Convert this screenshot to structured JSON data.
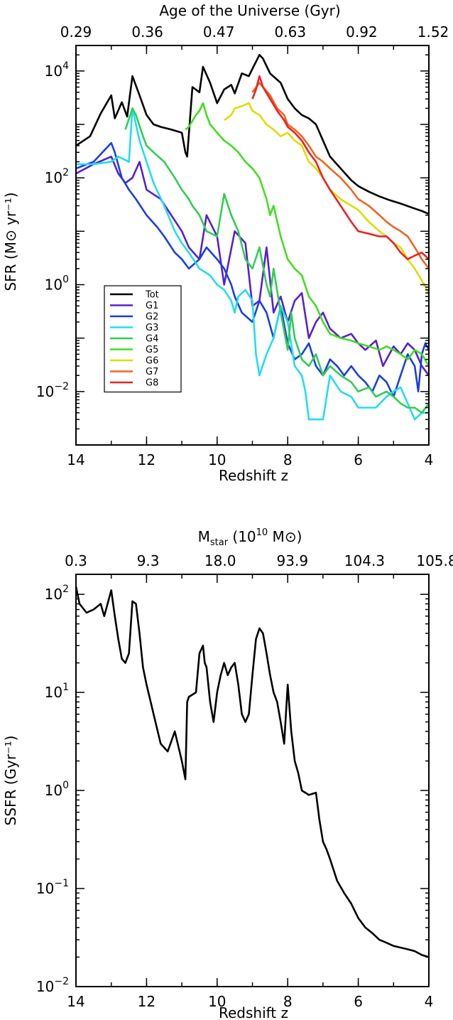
{
  "chart_data": [
    {
      "type": "line",
      "xlabel": "Redshift z",
      "ylabel": "SFR (M⊙ yr⁻¹)",
      "top_axis_label": "Age of the Universe (Gyr)",
      "top_tick_labels": [
        "0.29",
        "0.36",
        "0.47",
        "0.63",
        "0.92",
        "1.52"
      ],
      "x_ticks": [
        14,
        12,
        10,
        8,
        6,
        4
      ],
      "xlim": [
        14,
        4
      ],
      "ylim": [
        0.001,
        30000
      ],
      "yscale": "log",
      "y_tick_labels": [
        {
          "value": 10000,
          "base": "10",
          "exp": "4"
        },
        {
          "value": 100,
          "base": "10",
          "exp": "2"
        },
        {
          "value": 1,
          "base": "10",
          "exp": "0"
        },
        {
          "value": 0.01,
          "base": "10",
          "exp": "−2"
        }
      ],
      "legend_position": "lower-left",
      "series": [
        {
          "name": "Tot",
          "color": "#000000",
          "x": [
            14.0,
            13.6,
            13.3,
            13.0,
            12.9,
            12.7,
            12.55,
            12.4,
            12.2,
            12.0,
            11.8,
            11.6,
            11.3,
            11.0,
            10.9,
            10.85,
            10.7,
            10.5,
            10.4,
            10.2,
            10.0,
            9.8,
            9.6,
            9.5,
            9.3,
            9.1,
            9.0,
            8.8,
            8.7,
            8.5,
            8.2,
            8.0,
            7.8,
            7.6,
            7.4,
            7.2,
            7.0,
            6.8,
            6.5,
            6.2,
            6.0,
            5.7,
            5.4,
            5.1,
            4.8,
            4.5,
            4.2,
            4.0
          ],
          "y": [
            400,
            600,
            1600,
            3500,
            1300,
            2600,
            1400,
            8000,
            3500,
            1500,
            1000,
            900,
            800,
            700,
            300,
            250,
            5000,
            4000,
            12000,
            6000,
            2500,
            4500,
            5500,
            3800,
            9000,
            8000,
            11000,
            20000,
            17000,
            9000,
            6000,
            3000,
            2000,
            1500,
            1300,
            1000,
            500,
            250,
            150,
            90,
            70,
            55,
            45,
            38,
            33,
            28,
            24,
            21
          ]
        },
        {
          "name": "G1",
          "color": "#5522cc",
          "x": [
            14.0,
            13.5,
            13.0,
            12.8,
            12.6,
            12.4,
            12.2,
            12.0,
            11.6,
            11.3,
            11.0,
            10.8,
            10.5,
            10.3,
            10.0,
            9.8,
            9.5,
            9.2,
            9.0,
            8.8,
            8.6,
            8.4,
            8.2,
            8.0,
            7.8,
            7.6,
            7.4,
            7.2,
            7.0,
            6.8,
            6.5,
            6.2,
            6.0,
            5.8,
            5.5,
            5.3,
            5.0,
            4.8,
            4.6,
            4.4,
            4.2,
            4.0
          ],
          "y": [
            120,
            180,
            250,
            120,
            80,
            100,
            200,
            60,
            40,
            20,
            10,
            5,
            3,
            20,
            8,
            1,
            10,
            6,
            0.4,
            0.5,
            5,
            0.3,
            0.6,
            0.2,
            0.5,
            0.7,
            0.1,
            0.2,
            0.3,
            0.15,
            0.1,
            0.12,
            0.08,
            0.06,
            0.09,
            0.03,
            0.07,
            0.05,
            0.08,
            0.06,
            0.03,
            0.02
          ]
        },
        {
          "name": "G2",
          "color": "#1a3fe0",
          "x": [
            14.0,
            13.5,
            13.0,
            12.9,
            12.7,
            12.5,
            12.3,
            12.0,
            11.7,
            11.5,
            11.2,
            11.0,
            10.8,
            10.5,
            10.3,
            10.0,
            9.8,
            9.6,
            9.5,
            9.3,
            9.0,
            8.8,
            8.6,
            8.4,
            8.2,
            8.0,
            7.8,
            7.6,
            7.4,
            7.2,
            7.0,
            6.8,
            6.6,
            6.4,
            6.2,
            6.0,
            5.8,
            5.6,
            5.4,
            5.2,
            5.0,
            4.8,
            4.6,
            4.4,
            4.3,
            4.2,
            4.1,
            4.0
          ],
          "y": [
            150,
            200,
            450,
            300,
            100,
            60,
            40,
            20,
            12,
            8,
            4,
            3,
            2,
            3,
            5,
            3,
            2,
            1,
            0.6,
            0.3,
            0.2,
            0.5,
            0.3,
            0.1,
            0.4,
            0.08,
            0.04,
            0.05,
            0.08,
            0.03,
            0.02,
            0.04,
            0.03,
            0.02,
            0.03,
            0.02,
            0.015,
            0.01,
            0.02,
            0.015,
            0.008,
            0.02,
            0.05,
            0.03,
            0.01,
            0.05,
            0.08,
            0.06
          ]
        },
        {
          "name": "G3",
          "color": "#22ddee",
          "x": [
            14.0,
            13.5,
            13.0,
            12.8,
            12.5,
            12.4,
            12.2,
            12.0,
            11.8,
            11.5,
            11.2,
            11.0,
            10.8,
            10.5,
            10.2,
            10.0,
            9.8,
            9.6,
            9.5,
            9.4,
            9.2,
            9.0,
            8.9,
            8.8,
            8.6,
            8.4,
            8.2,
            8.0,
            7.8,
            7.6,
            7.5,
            7.4,
            7.3,
            7.0,
            6.8,
            6.5,
            6.2,
            6.0,
            5.7,
            5.5,
            5.2,
            5.0,
            4.8,
            4.6,
            4.4,
            4.2,
            4.0
          ],
          "y": [
            180,
            180,
            200,
            250,
            200,
            2000,
            500,
            200,
            80,
            30,
            10,
            6,
            4,
            2,
            1.5,
            1.0,
            0.8,
            0.5,
            0.3,
            0.6,
            0.8,
            0.5,
            0.05,
            0.02,
            0.05,
            0.1,
            0.4,
            0.2,
            0.03,
            0.02,
            0.01,
            0.003,
            0.003,
            0.003,
            0.02,
            0.01,
            0.008,
            0.005,
            0.005,
            0.005,
            0.008,
            0.01,
            0.012,
            0.006,
            0.003,
            0.004,
            0.004
          ]
        },
        {
          "name": "G4",
          "color": "#33cc55",
          "x": [
            12.6,
            12.4,
            12.3,
            12.1,
            12.0,
            11.8,
            11.5,
            11.2,
            11.0,
            10.8,
            10.7,
            10.5,
            10.3,
            10.0,
            9.8,
            9.6,
            9.4,
            9.2,
            9.0,
            8.8,
            8.6,
            8.5,
            8.4,
            8.2,
            8.0,
            7.9,
            7.8,
            7.6,
            7.4,
            7.2,
            7.0,
            6.8,
            6.5,
            6.2,
            6.0,
            5.7,
            5.5,
            5.2,
            5.0,
            4.8,
            4.6,
            4.4,
            4.2,
            4.0
          ],
          "y": [
            800,
            2000,
            1500,
            600,
            400,
            300,
            200,
            100,
            60,
            40,
            30,
            20,
            10,
            8,
            50,
            20,
            10,
            3,
            2,
            5,
            1,
            0.6,
            2,
            0.3,
            0.06,
            0.3,
            0.1,
            0.04,
            0.03,
            0.05,
            0.02,
            0.03,
            0.02,
            0.015,
            0.01,
            0.012,
            0.008,
            0.01,
            0.008,
            0.006,
            0.005,
            0.005,
            0.004,
            0.006
          ]
        },
        {
          "name": "G5",
          "color": "#44dd22",
          "x": [
            10.9,
            10.8,
            10.6,
            10.5,
            10.4,
            10.3,
            10.2,
            10.0,
            9.8,
            9.6,
            9.4,
            9.2,
            9.0,
            8.8,
            8.6,
            8.5,
            8.4,
            8.2,
            8.0,
            7.8,
            7.6,
            7.4,
            7.2,
            7.0,
            6.8,
            6.5,
            6.2,
            6.0,
            5.7,
            5.4,
            5.2,
            5.0,
            4.8,
            4.6,
            4.4,
            4.2,
            4.0
          ],
          "y": [
            800,
            900,
            1500,
            1800,
            2500,
            1500,
            1000,
            700,
            500,
            400,
            300,
            200,
            150,
            100,
            40,
            20,
            30,
            8,
            3,
            2,
            1.5,
            0.6,
            0.4,
            0.2,
            0.12,
            0.1,
            0.09,
            0.08,
            0.07,
            0.06,
            0.07,
            0.06,
            0.05,
            0.04,
            0.06,
            0.05,
            0.03
          ]
        },
        {
          "name": "G6",
          "color": "#dddd00",
          "x": [
            9.8,
            9.6,
            9.5,
            9.3,
            9.1,
            9.0,
            8.8,
            8.6,
            8.4,
            8.2,
            8.0,
            7.8,
            7.6,
            7.4,
            7.2,
            7.0,
            6.8,
            6.5,
            6.2,
            6.0,
            5.7,
            5.4,
            5.2,
            5.0,
            4.8,
            4.6,
            4.4,
            4.2,
            4.0
          ],
          "y": [
            1200,
            1500,
            2000,
            2200,
            2500,
            1800,
            1500,
            1000,
            800,
            600,
            700,
            500,
            400,
            200,
            150,
            100,
            60,
            40,
            30,
            25,
            15,
            10,
            8,
            6,
            5,
            3,
            2,
            1.2,
            0.7
          ]
        },
        {
          "name": "G7",
          "color": "#ee6622",
          "x": [
            9.0,
            8.8,
            8.7,
            8.5,
            8.3,
            8.1,
            8.0,
            7.8,
            7.6,
            7.4,
            7.2,
            7.0,
            6.8,
            6.5,
            6.2,
            6.0,
            5.7,
            5.4,
            5.2,
            5.0,
            4.8,
            4.6,
            4.4,
            4.2,
            4.0
          ],
          "y": [
            4000,
            6000,
            5000,
            3500,
            2000,
            1500,
            1000,
            800,
            600,
            400,
            250,
            200,
            150,
            100,
            60,
            40,
            30,
            20,
            15,
            12,
            10,
            8,
            5,
            3,
            2
          ]
        },
        {
          "name": "G8",
          "color": "#ee2222",
          "x": [
            9.0,
            8.9,
            8.8,
            8.7,
            8.5,
            8.3,
            8.1,
            8.0,
            7.8,
            7.6,
            7.4,
            7.2,
            7.0,
            6.8,
            6.5,
            6.2,
            6.0,
            5.7,
            5.4,
            5.2,
            5.0,
            4.8,
            4.6,
            4.4,
            4.2,
            4.0
          ],
          "y": [
            3000,
            4500,
            8000,
            5000,
            3000,
            1800,
            1200,
            900,
            700,
            500,
            300,
            200,
            100,
            60,
            30,
            15,
            10,
            9,
            8,
            8,
            6,
            4,
            3,
            3.5,
            4,
            3
          ]
        }
      ]
    },
    {
      "type": "line",
      "xlabel": "Redshift z",
      "ylabel": "SSFR (Gyr⁻¹)",
      "top_axis_label": "Mstar (10¹⁰ M⊙)",
      "top_axis_label_parts": {
        "m": "M",
        "sub": "star",
        "open": " (10",
        "exp": "10",
        "close": " M⊙)"
      },
      "top_tick_labels": [
        "0.3",
        "9.3",
        "18.0",
        "93.9",
        "104.3",
        "105.8"
      ],
      "x_ticks": [
        14,
        12,
        10,
        8,
        6,
        4
      ],
      "xlim": [
        14,
        4
      ],
      "ylim": [
        0.01,
        160
      ],
      "yscale": "log",
      "y_tick_labels": [
        {
          "value": 100,
          "base": "10",
          "exp": "2"
        },
        {
          "value": 10,
          "base": "10",
          "exp": "1"
        },
        {
          "value": 1,
          "base": "10",
          "exp": "0"
        },
        {
          "value": 0.1,
          "base": "10",
          "exp": "−1"
        },
        {
          "value": 0.01,
          "base": "10",
          "exp": "−2"
        }
      ],
      "series": [
        {
          "name": "",
          "color": "#000000",
          "x": [
            14.0,
            13.9,
            13.7,
            13.5,
            13.3,
            13.2,
            13.0,
            12.9,
            12.8,
            12.7,
            12.6,
            12.5,
            12.4,
            12.3,
            12.2,
            12.1,
            12.0,
            11.8,
            11.6,
            11.4,
            11.2,
            11.0,
            10.9,
            10.85,
            10.8,
            10.6,
            10.5,
            10.4,
            10.35,
            10.3,
            10.2,
            10.1,
            10.0,
            9.9,
            9.8,
            9.7,
            9.6,
            9.5,
            9.4,
            9.3,
            9.2,
            9.1,
            9.0,
            8.9,
            8.8,
            8.7,
            8.6,
            8.5,
            8.4,
            8.3,
            8.2,
            8.1,
            8.0,
            7.9,
            7.8,
            7.7,
            7.6,
            7.4,
            7.2,
            7.1,
            7.0,
            6.9,
            6.8,
            6.6,
            6.4,
            6.2,
            6.0,
            5.8,
            5.6,
            5.4,
            5.2,
            5.0,
            4.8,
            4.6,
            4.4,
            4.2,
            4.0
          ],
          "y": [
            120,
            80,
            65,
            70,
            80,
            60,
            110,
            60,
            35,
            22,
            20,
            25,
            85,
            80,
            40,
            18,
            12,
            6,
            3,
            2.5,
            4,
            2,
            1.3,
            8,
            9,
            10,
            25,
            30,
            20,
            18,
            8,
            5,
            10,
            15,
            20,
            15,
            18,
            20,
            12,
            6,
            5,
            6,
            15,
            35,
            45,
            40,
            25,
            15,
            10,
            8,
            5,
            3,
            12,
            4,
            2,
            1.5,
            1.0,
            0.9,
            0.95,
            0.5,
            0.3,
            0.25,
            0.2,
            0.12,
            0.09,
            0.07,
            0.05,
            0.04,
            0.035,
            0.03,
            0.028,
            0.026,
            0.025,
            0.024,
            0.023,
            0.021,
            0.02
          ]
        }
      ]
    }
  ]
}
